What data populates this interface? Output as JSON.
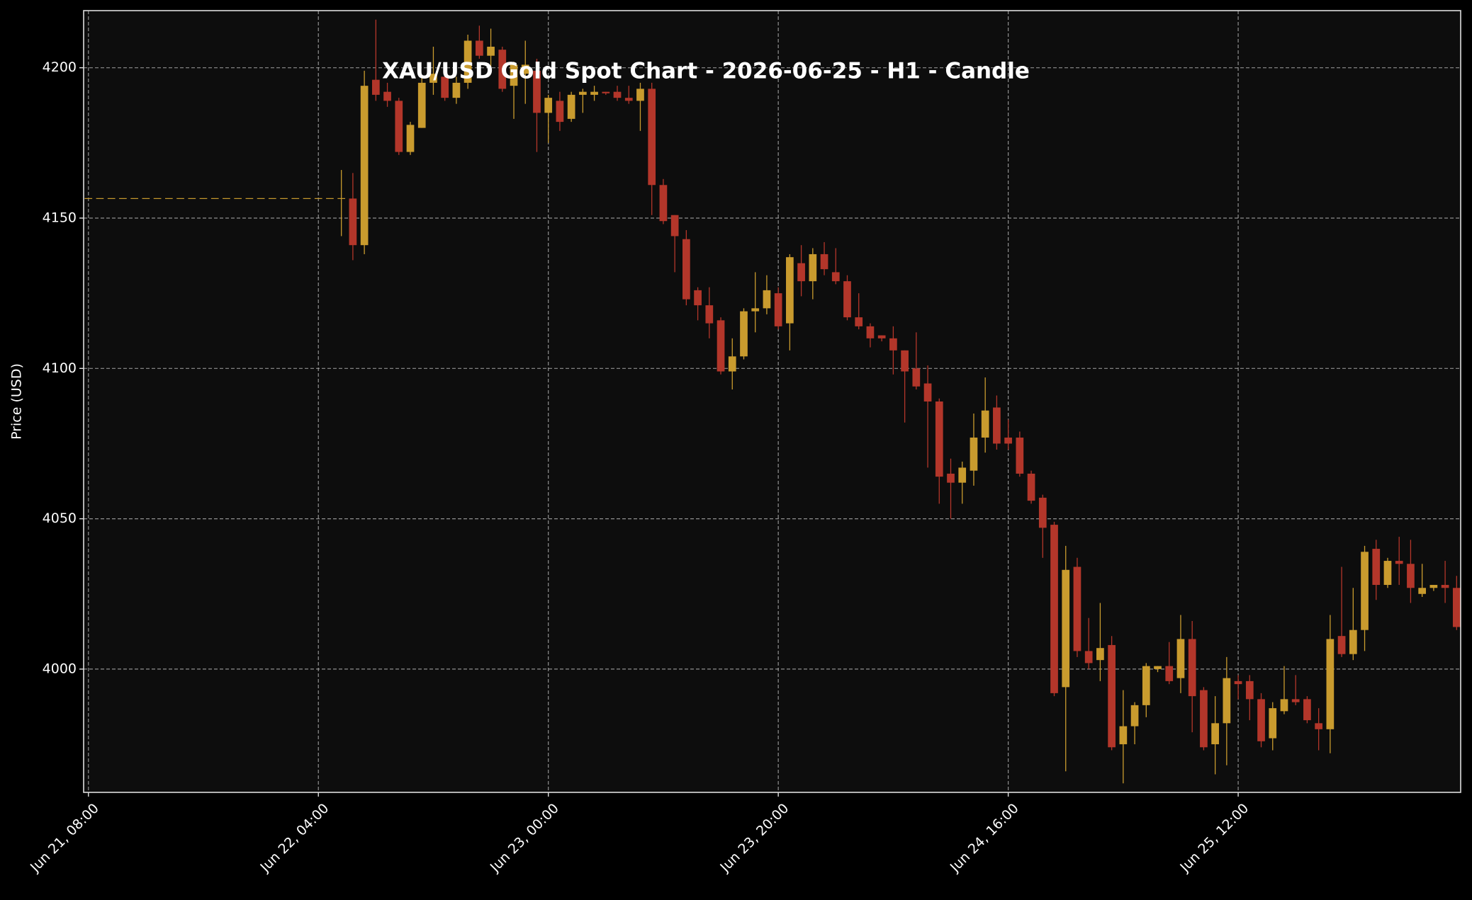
{
  "chart_data": {
    "type": "candlestick",
    "title": "XAU/USD Gold Spot Chart - 2026-06-25 - H1 - Candle",
    "y_label": "Price (USD)",
    "up_color": "#c99b2e",
    "down_color": "#b3362a",
    "grid": true,
    "ylim": [
      3959,
      4219
    ],
    "yticks": [
      4000,
      4050,
      4100,
      4150,
      4200
    ],
    "xlim": [
      "Jun 21, 07:35",
      "Jun 26, 07:21"
    ],
    "xticks": [
      "Jun 21, 08:00",
      "Jun 22, 04:00",
      "Jun 23, 00:00",
      "Jun 23, 20:00",
      "Jun 24, 16:00",
      "Jun 25, 12:00"
    ],
    "x": [
      "Jun 21, 08:00",
      "Jun 21, 09:00",
      "Jun 21, 10:00",
      "Jun 21, 11:00",
      "Jun 21, 12:00",
      "Jun 21, 13:00",
      "Jun 21, 14:00",
      "Jun 21, 15:00",
      "Jun 21, 16:00",
      "Jun 21, 17:00",
      "Jun 21, 18:00",
      "Jun 21, 19:00",
      "Jun 21, 20:00",
      "Jun 21, 21:00",
      "Jun 21, 22:00",
      "Jun 21, 23:00",
      "Jun 22, 00:00",
      "Jun 22, 01:00",
      "Jun 22, 02:00",
      "Jun 22, 03:00",
      "Jun 22, 04:00",
      "Jun 22, 05:00",
      "Jun 22, 06:00",
      "Jun 22, 07:00",
      "Jun 22, 08:00",
      "Jun 22, 09:00",
      "Jun 22, 10:00",
      "Jun 22, 11:00",
      "Jun 22, 12:00",
      "Jun 22, 13:00",
      "Jun 22, 14:00",
      "Jun 22, 15:00",
      "Jun 22, 16:00",
      "Jun 22, 17:00",
      "Jun 22, 18:00",
      "Jun 22, 19:00",
      "Jun 22, 20:00",
      "Jun 22, 21:00",
      "Jun 22, 22:00",
      "Jun 22, 23:00",
      "Jun 23, 00:00",
      "Jun 23, 01:00",
      "Jun 23, 02:00",
      "Jun 23, 03:00",
      "Jun 23, 04:00",
      "Jun 23, 05:00",
      "Jun 23, 06:00",
      "Jun 23, 07:00",
      "Jun 23, 08:00",
      "Jun 23, 09:00",
      "Jun 23, 10:00",
      "Jun 23, 11:00",
      "Jun 23, 12:00",
      "Jun 23, 13:00",
      "Jun 23, 14:00",
      "Jun 23, 15:00",
      "Jun 23, 16:00",
      "Jun 23, 17:00",
      "Jun 23, 18:00",
      "Jun 23, 19:00",
      "Jun 23, 20:00",
      "Jun 23, 21:00",
      "Jun 23, 22:00",
      "Jun 23, 23:00",
      "Jun 24, 00:00",
      "Jun 24, 01:00",
      "Jun 24, 02:00",
      "Jun 24, 03:00",
      "Jun 24, 04:00",
      "Jun 24, 05:00",
      "Jun 24, 06:00",
      "Jun 24, 07:00",
      "Jun 24, 08:00",
      "Jun 24, 09:00",
      "Jun 24, 10:00",
      "Jun 24, 11:00",
      "Jun 24, 12:00",
      "Jun 24, 13:00",
      "Jun 24, 14:00",
      "Jun 24, 15:00",
      "Jun 24, 16:00",
      "Jun 24, 17:00",
      "Jun 24, 18:00",
      "Jun 24, 19:00",
      "Jun 24, 20:00",
      "Jun 24, 21:00",
      "Jun 24, 22:00",
      "Jun 24, 23:00",
      "Jun 25, 00:00",
      "Jun 25, 01:00",
      "Jun 25, 02:00",
      "Jun 25, 03:00",
      "Jun 25, 04:00",
      "Jun 25, 05:00",
      "Jun 25, 06:00",
      "Jun 25, 07:00",
      "Jun 25, 08:00",
      "Jun 25, 09:00",
      "Jun 25, 10:00",
      "Jun 25, 11:00",
      "Jun 25, 12:00",
      "Jun 25, 13:00",
      "Jun 25, 14:00",
      "Jun 25, 15:00",
      "Jun 25, 16:00",
      "Jun 25, 17:00",
      "Jun 25, 18:00",
      "Jun 25, 19:00",
      "Jun 25, 20:00",
      "Jun 25, 21:00",
      "Jun 25, 22:00",
      "Jun 25, 23:00",
      "Jun 26, 00:00",
      "Jun 26, 01:00",
      "Jun 26, 02:00",
      "Jun 26, 03:00",
      "Jun 26, 04:00",
      "Jun 26, 05:00",
      "Jun 26, 06:00",
      "Jun 26, 07:00"
    ],
    "open": [
      4156.5,
      4156.5,
      4156.5,
      4156.5,
      4156.5,
      4156.5,
      4156.5,
      4156.5,
      4156.5,
      4156.5,
      4156.5,
      4156.5,
      4156.5,
      4156.5,
      4156.5,
      4156.5,
      4156.5,
      4156.5,
      4156.5,
      4156.5,
      4156.5,
      4156.5,
      4156.5,
      4156.5,
      4141,
      4196,
      4192,
      4189,
      4172,
      4180,
      4195,
      4197,
      4190,
      4195,
      4209,
      4204,
      4206,
      4194,
      4198,
      4199,
      4185,
      4189,
      4183,
      4191,
      4191,
      4192,
      4192,
      4190,
      4189,
      4193,
      4161,
      4151,
      4143,
      4126,
      4121,
      4116,
      4099,
      4104,
      4119,
      4120,
      4125,
      4115,
      4135,
      4129,
      4138,
      4132,
      4129,
      4117,
      4114,
      4111,
      4110,
      4106,
      4100,
      4095,
      4089,
      4065,
      4062,
      4066,
      4077,
      4087,
      4077,
      4077,
      4065,
      4057,
      4048,
      3994,
      4034,
      4006,
      4003,
      4008,
      3975,
      3981,
      3988,
      4000,
      4001,
      3997,
      4010,
      3993,
      3975,
      3982,
      3996,
      3996,
      3990,
      3977,
      3986,
      3990,
      3990,
      3982,
      3980,
      4011,
      4005,
      4013,
      4040,
      4028,
      4036,
      4035,
      4025,
      4027,
      4028,
      4027
    ],
    "high": [
      4156.5,
      4156.5,
      4156.5,
      4156.5,
      4156.5,
      4156.5,
      4156.5,
      4156.5,
      4156.5,
      4156.5,
      4156.5,
      4156.5,
      4156.5,
      4156.5,
      4156.5,
      4156.5,
      4156.5,
      4156.5,
      4156.5,
      4156.5,
      4156.5,
      4156.5,
      4166,
      4165,
      4199,
      4216,
      4195,
      4190,
      4182,
      4197,
      4207,
      4201,
      4197,
      4211,
      4214,
      4213,
      4207,
      4202,
      4209,
      4203,
      4191,
      4192,
      4192,
      4193,
      4194,
      4192,
      4194,
      4194,
      4195,
      4195,
      4163,
      4151,
      4146,
      4127,
      4127,
      4117,
      4110,
      4120,
      4132,
      4131,
      4127,
      4138,
      4141,
      4140,
      4142,
      4140,
      4131,
      4125,
      4115,
      4111,
      4114,
      4106,
      4112,
      4101,
      4090,
      4070,
      4069,
      4085,
      4097,
      4091,
      4083,
      4079,
      4066,
      4058,
      4049,
      4041,
      4037,
      4017,
      4022,
      4011,
      3993,
      3989,
      4002,
      4001,
      4009,
      4018,
      4016,
      3994,
      3991,
      4004,
      3998,
      3998,
      3992,
      3989,
      4001,
      3998,
      3991,
      3987,
      4018,
      4034,
      4027,
      4041,
      4043,
      4037,
      4044,
      4043,
      4035,
      4028,
      4036,
      4031
    ],
    "low": [
      4156.5,
      4156.5,
      4156.5,
      4156.5,
      4156.5,
      4156.5,
      4156.5,
      4156.5,
      4156.5,
      4156.5,
      4156.5,
      4156.5,
      4156.5,
      4156.5,
      4156.5,
      4156.5,
      4156.5,
      4156.5,
      4156.5,
      4156.5,
      4156.5,
      4156.5,
      4144,
      4136,
      4138,
      4189,
      4187,
      4171,
      4171,
      4180,
      4191,
      4189,
      4188,
      4193,
      4203,
      4199,
      4192,
      4183,
      4188,
      4172,
      4175,
      4179,
      4182,
      4185,
      4189,
      4191,
      4189,
      4188,
      4179,
      4151,
      4148,
      4132,
      4121,
      4116,
      4110,
      4098,
      4093,
      4103,
      4112,
      4118,
      4113,
      4106,
      4124,
      4123,
      4131,
      4128,
      4116,
      4113,
      4107,
      4109,
      4098,
      4082,
      4093,
      4067,
      4055,
      4050,
      4055,
      4061,
      4072,
      4073,
      4073,
      4064,
      4055,
      4037,
      3991,
      3966,
      4004,
      4000,
      3996,
      3973,
      3962,
      3975,
      3984,
      3999,
      3995,
      3992,
      3979,
      3973,
      3965,
      3968,
      3990,
      3983,
      3974,
      3973,
      3985,
      3988,
      3982,
      3973,
      3972,
      4004,
      4003,
      4006,
      4023,
      4027,
      4028,
      4022,
      4024,
      4026,
      4022,
      4013
    ],
    "close": [
      4156.5,
      4156.5,
      4156.5,
      4156.5,
      4156.5,
      4156.5,
      4156.5,
      4156.5,
      4156.5,
      4156.5,
      4156.5,
      4156.5,
      4156.5,
      4156.5,
      4156.5,
      4156.5,
      4156.5,
      4156.5,
      4156.5,
      4156.5,
      4156.5,
      4156.5,
      4156.5,
      4141,
      4194,
      4191,
      4189,
      4172,
      4181,
      4195,
      4198,
      4190,
      4195,
      4209,
      4204,
      4207,
      4193,
      4201,
      4201,
      4185,
      4190,
      4182,
      4191,
      4192,
      4192,
      4191.5,
      4190,
      4189,
      4193,
      4161,
      4149,
      4144,
      4123,
      4121,
      4115,
      4099,
      4104,
      4119,
      4120,
      4126,
      4114,
      4137,
      4129,
      4138,
      4133,
      4129,
      4117,
      4114,
      4110,
      4110,
      4106,
      4099,
      4094,
      4089,
      4064,
      4062,
      4067,
      4077,
      4086,
      4075,
      4075,
      4065,
      4056,
      4047,
      3992,
      4033,
      4006,
      4002,
      4007,
      3974,
      3981,
      3988,
      4001,
      4001,
      3996,
      4010,
      3991,
      3974,
      3982,
      3997,
      3995,
      3990,
      3976,
      3987,
      3990,
      3989,
      3983,
      3980,
      4010,
      4005,
      4013,
      4039,
      4028,
      4036,
      4035,
      4027,
      4027,
      4028,
      4027,
      4014
    ]
  }
}
